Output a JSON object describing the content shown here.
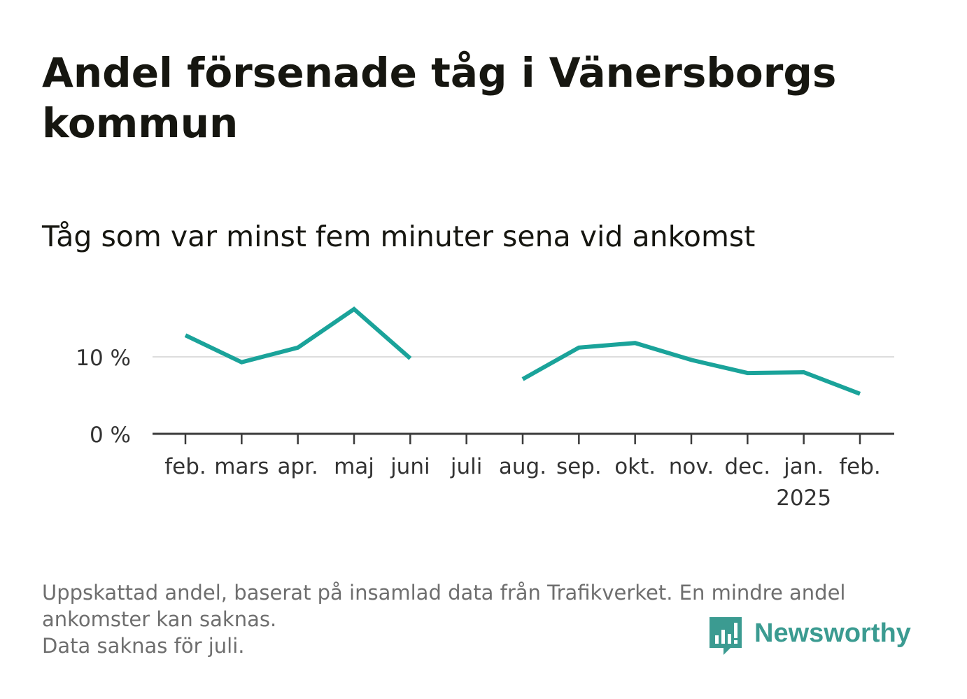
{
  "title": "Andel försenade tåg i Vänersborgs kommun",
  "subtitle": "Tåg som var minst fem minuter sena vid ankomst",
  "notes": [
    "Uppskattad andel, baserat på insamlad data från Trafikverket. En mindre andel ankomster kan saknas.",
    "Data saknas för juli."
  ],
  "logo": {
    "text": "Newsworthy",
    "icon": "newsworthy-bar-chart-icon"
  },
  "colors": {
    "line": "#1aa39a",
    "axis": "#3a3a3a",
    "grid": "#dddddd",
    "text": "#161610",
    "note": "#6e6e6e",
    "brand": "#3b9b91"
  },
  "chart_data": {
    "type": "line",
    "title": "Andel försenade tåg i Vänersborgs kommun",
    "subtitle": "Tåg som var minst fem minuter sena vid ankomst",
    "categories": [
      "feb.",
      "mars",
      "apr.",
      "maj",
      "juni",
      "juli",
      "aug.",
      "sep.",
      "okt.",
      "nov.",
      "dec.",
      "jan.",
      "feb."
    ],
    "year_label": {
      "category_index": 11,
      "text": "2025"
    },
    "series": [
      {
        "values": [
          12.8,
          9.3,
          11.2,
          16.2,
          9.8,
          null,
          7.1,
          11.2,
          11.8,
          9.6,
          7.9,
          8.0,
          5.2
        ]
      }
    ],
    "y_ticks": [
      0,
      10
    ],
    "y_tick_labels": [
      "0 %",
      "10 %"
    ],
    "ylim": [
      0,
      20
    ],
    "grid": true
  }
}
